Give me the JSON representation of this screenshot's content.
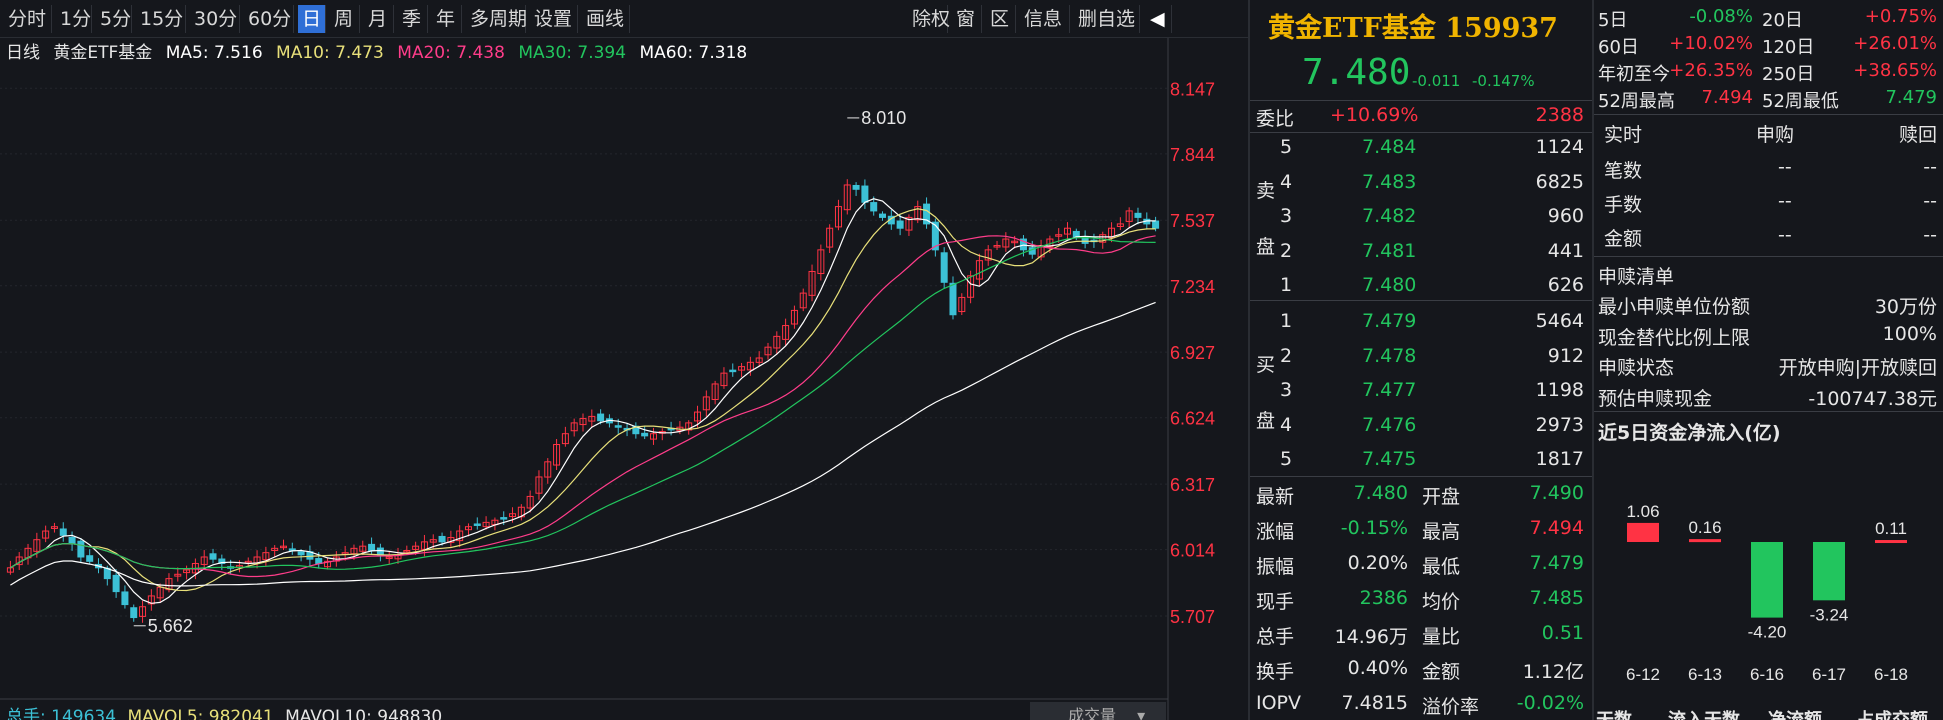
{
  "toolbar": {
    "periods": [
      "分时",
      "1分",
      "5分",
      "15分",
      "30分",
      "60分",
      "日",
      "周",
      "月",
      "季",
      "年",
      "多周期",
      "设置",
      "画线"
    ],
    "active": "日",
    "right_tools": [
      "除权",
      "窗",
      "区",
      "信息",
      "删自选"
    ],
    "expand_glyph": "◀"
  },
  "ma_line": {
    "period": "日线",
    "name": "黄金ETF基金",
    "ma5": "MA5: 7.516",
    "ma10": "MA10: 7.473",
    "ma20": "MA20: 7.438",
    "ma30": "MA30: 7.394",
    "ma60": "MA60: 7.318"
  },
  "colors": {
    "up": "#ff3344",
    "down": "#3cc1d6",
    "ma5": "#ffffff",
    "ma10": "#e8e07a",
    "ma20": "#ff3d8a",
    "ma30": "#22c55e",
    "ma60": "#ffffff"
  },
  "chart_data": {
    "type": "candlestick",
    "y_ticks": [
      "8.147",
      "7.844",
      "7.537",
      "7.234",
      "6.927",
      "6.624",
      "6.317",
      "6.014",
      "5.707"
    ],
    "ylim": [
      5.55,
      8.25
    ],
    "high_annotation": "8.010",
    "low_annotation": "5.662",
    "close_series": [
      5.93,
      5.98,
      6.02,
      6.06,
      6.1,
      6.12,
      6.08,
      6.04,
      5.98,
      5.96,
      5.93,
      5.88,
      5.82,
      5.76,
      5.7,
      5.75,
      5.8,
      5.84,
      5.88,
      5.9,
      5.92,
      5.95,
      5.98,
      5.97,
      5.95,
      5.93,
      5.94,
      5.96,
      5.98,
      6.0,
      6.02,
      6.03,
      6.01,
      5.99,
      5.97,
      5.95,
      5.96,
      5.98,
      6.0,
      6.02,
      6.03,
      6.01,
      5.99,
      5.98,
      5.99,
      6.01,
      6.03,
      6.05,
      6.06,
      6.05,
      6.07,
      6.1,
      6.12,
      6.13,
      6.14,
      6.15,
      6.16,
      6.18,
      6.21,
      6.26,
      6.35,
      6.42,
      6.5,
      6.55,
      6.6,
      6.62,
      6.63,
      6.61,
      6.6,
      6.58,
      6.57,
      6.55,
      6.54,
      6.55,
      6.56,
      6.57,
      6.58,
      6.6,
      6.65,
      6.72,
      6.78,
      6.83,
      6.84,
      6.86,
      6.88,
      6.9,
      6.95,
      7.0,
      7.05,
      7.12,
      7.2,
      7.3,
      7.4,
      7.5,
      7.6,
      7.7,
      7.68,
      7.62,
      7.58,
      7.55,
      7.52,
      7.5,
      7.55,
      7.6,
      7.52,
      7.4,
      7.25,
      7.1,
      7.18,
      7.28,
      7.35,
      7.4,
      7.42,
      7.45,
      7.44,
      7.4,
      7.38,
      7.42,
      7.45,
      7.47,
      7.5,
      7.46,
      7.43,
      7.44,
      7.47,
      7.5,
      7.52,
      7.58,
      7.55,
      7.52,
      7.5
    ],
    "volume_footer": {
      "total": "总手: 149634",
      "mavol5": "MAVOL5: 982041",
      "mavol10": "MAVOL10: 948830"
    },
    "volume_label": "成交量"
  },
  "quote": {
    "title": "黄金ETF基金 159937",
    "price": "7.480",
    "change": "-0.011",
    "change_pct": "-0.147%",
    "weibi_label": "委比",
    "weibi_pct": "+10.69%",
    "weibi_val": "2388",
    "sell_label": [
      "卖",
      "盘"
    ],
    "buy_label": [
      "买",
      "盘"
    ],
    "sell": [
      {
        "lvl": "5",
        "price": "7.484",
        "vol": "1124"
      },
      {
        "lvl": "4",
        "price": "7.483",
        "vol": "6825"
      },
      {
        "lvl": "3",
        "price": "7.482",
        "vol": "960"
      },
      {
        "lvl": "2",
        "price": "7.481",
        "vol": "441"
      },
      {
        "lvl": "1",
        "price": "7.480",
        "vol": "626"
      }
    ],
    "buy": [
      {
        "lvl": "1",
        "price": "7.479",
        "vol": "5464"
      },
      {
        "lvl": "2",
        "price": "7.478",
        "vol": "912"
      },
      {
        "lvl": "3",
        "price": "7.477",
        "vol": "1198"
      },
      {
        "lvl": "4",
        "price": "7.476",
        "vol": "2973"
      },
      {
        "lvl": "5",
        "price": "7.475",
        "vol": "1817"
      }
    ],
    "stats": [
      {
        "l1": "最新",
        "v1": "7.480",
        "c1": "green",
        "l2": "开盘",
        "v2": "7.490",
        "c2": "green"
      },
      {
        "l1": "涨幅",
        "v1": "-0.15%",
        "c1": "green",
        "l2": "最高",
        "v2": "7.494",
        "c2": "red"
      },
      {
        "l1": "振幅",
        "v1": "0.20%",
        "c1": "white",
        "l2": "最低",
        "v2": "7.479",
        "c2": "green"
      },
      {
        "l1": "现手",
        "v1": "2386",
        "c1": "green",
        "l2": "均价",
        "v2": "7.485",
        "c2": "green"
      },
      {
        "l1": "总手",
        "v1": "14.96万",
        "c1": "white",
        "l2": "量比",
        "v2": "0.51",
        "c2": "green"
      },
      {
        "l1": "换手",
        "v1": "0.40%",
        "c1": "white",
        "l2": "金额",
        "v2": "1.12亿",
        "c2": "white"
      },
      {
        "l1": "IOPV",
        "v1": "7.4815",
        "c1": "white",
        "l2": "溢价率",
        "v2": "-0.02%",
        "c2": "green"
      }
    ]
  },
  "info": {
    "returns": [
      {
        "l1": "5日",
        "v1": "-0.08%",
        "c1": "green",
        "l2": "20日",
        "v2": "+0.75%",
        "c2": "red"
      },
      {
        "l1": "60日",
        "v1": "+10.02%",
        "c1": "red",
        "l2": "120日",
        "v2": "+26.01%",
        "c2": "red"
      },
      {
        "l1": "年初至今",
        "v1": "+26.35%",
        "c1": "red",
        "l2": "250日",
        "v2": "+38.65%",
        "c2": "red"
      },
      {
        "l1": "52周最高",
        "v1": "7.494",
        "c1": "red",
        "l2": "52周最低",
        "v2": "7.479",
        "c2": "green"
      }
    ],
    "realtime_header": [
      "实时",
      "申购",
      "赎回"
    ],
    "realtime_rows": [
      {
        "label": "笔数",
        "a": "--",
        "b": "--"
      },
      {
        "label": "手数",
        "a": "--",
        "b": "--"
      },
      {
        "label": "金额",
        "a": "--",
        "b": "--"
      }
    ],
    "redeem_title": "申赎清单",
    "redeem_rows": [
      {
        "label": "最小申赎单位份额",
        "value": "30万份"
      },
      {
        "label": "现金替代比例上限",
        "value": "100%"
      },
      {
        "label": "申赎状态",
        "value": "开放申购|开放赎回"
      },
      {
        "label": "预估申赎现金",
        "value": "-100747.38元"
      }
    ],
    "flow_title": "近5日资金净流入(亿)",
    "flow_chart": {
      "type": "bar",
      "categories": [
        "6-12",
        "6-13",
        "6-16",
        "6-17",
        "6-18"
      ],
      "values": [
        1.06,
        0.16,
        -4.2,
        -3.24,
        0.11
      ],
      "labels": [
        "1.06",
        "0.16",
        "-4.20",
        "-3.24",
        "0.11"
      ]
    },
    "footer_cut": [
      "天数",
      "流入天数",
      "净流额",
      "占成交额"
    ]
  }
}
